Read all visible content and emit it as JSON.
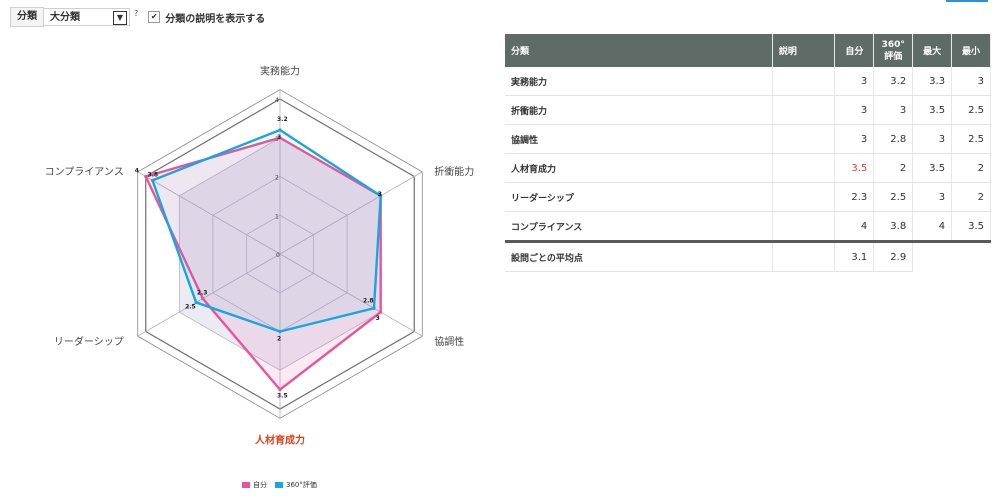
{
  "filter": {
    "label": "分類",
    "select_value": "大分類",
    "help_mark": "?",
    "show_desc_label": "分類の説明を表示する",
    "show_desc_checked": true
  },
  "colors": {
    "self": "#e8559a",
    "eval360": "#16a6e0",
    "highlight": "#e0411c",
    "header_bg": "#5e6b67"
  },
  "chart_data": {
    "type": "radar",
    "axes": [
      "実務能力",
      "折衝能力",
      "協調性",
      "人材育成力",
      "リーダーシップ",
      "コンプライアンス"
    ],
    "highlight_axis": "人材育成力",
    "range": [
      0,
      4
    ],
    "ticks": [
      "0",
      "1",
      "2",
      "3",
      "4"
    ],
    "series": [
      {
        "name": "自分",
        "values": [
          3,
          3,
          3,
          3.5,
          2.3,
          4
        ],
        "labels": [
          "3",
          "3",
          "3",
          "3.5",
          "2.3",
          "4"
        ]
      },
      {
        "name": "360°評価",
        "values": [
          3.2,
          3,
          2.8,
          2,
          2.5,
          3.8
        ],
        "labels": [
          "3.2",
          "3",
          "2.8",
          "2",
          "2.5",
          "3.8"
        ]
      }
    ],
    "legend_position": "bottom"
  },
  "table": {
    "headers": [
      "分類",
      "説明",
      "自分",
      "360°\n評価",
      "最大",
      "最小"
    ],
    "rows": [
      {
        "name": "実務能力",
        "desc": "",
        "self": "3",
        "eval": "3.2",
        "max": "3.3",
        "min": "3"
      },
      {
        "name": "折衝能力",
        "desc": "",
        "self": "3",
        "eval": "3",
        "max": "3.5",
        "min": "2.5"
      },
      {
        "name": "協調性",
        "desc": "",
        "self": "3",
        "eval": "2.8",
        "max": "3",
        "min": "2.5"
      },
      {
        "name": "人材育成力",
        "desc": "",
        "self": "3.5",
        "eval": "2",
        "max": "3.5",
        "min": "2",
        "highlight_self": true
      },
      {
        "name": "リーダーシップ",
        "desc": "",
        "self": "2.3",
        "eval": "2.5",
        "max": "3",
        "min": "2"
      },
      {
        "name": "コンプライアンス",
        "desc": "",
        "self": "4",
        "eval": "3.8",
        "max": "4",
        "min": "3.5"
      }
    ],
    "average": {
      "label": "設問ごとの平均点",
      "self": "3.1",
      "eval": "2.9"
    }
  }
}
